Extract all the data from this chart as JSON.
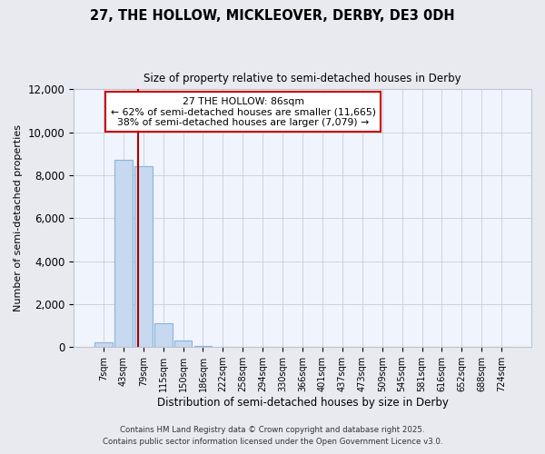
{
  "title": "27, THE HOLLOW, MICKLEOVER, DERBY, DE3 0DH",
  "subtitle": "Size of property relative to semi-detached houses in Derby",
  "xlabel": "Distribution of semi-detached houses by size in Derby",
  "ylabel": "Number of semi-detached properties",
  "bar_labels": [
    "7sqm",
    "43sqm",
    "79sqm",
    "115sqm",
    "150sqm",
    "186sqm",
    "222sqm",
    "258sqm",
    "294sqm",
    "330sqm",
    "366sqm",
    "401sqm",
    "437sqm",
    "473sqm",
    "509sqm",
    "545sqm",
    "581sqm",
    "616sqm",
    "652sqm",
    "688sqm",
    "724sqm"
  ],
  "bar_values": [
    200,
    8700,
    8400,
    1100,
    320,
    50,
    10,
    0,
    0,
    0,
    0,
    0,
    0,
    0,
    0,
    0,
    0,
    0,
    0,
    0,
    0
  ],
  "bar_color": "#c6d9f0",
  "bar_edge_color": "#8ab4d8",
  "vline_color": "#aa0000",
  "annotation_title": "27 THE HOLLOW: 86sqm",
  "annotation_line1": "← 62% of semi-detached houses are smaller (11,665)",
  "annotation_line2": "38% of semi-detached houses are larger (7,079) →",
  "annotation_box_facecolor": "#ffffff",
  "annotation_box_edgecolor": "#cc0000",
  "ylim": [
    0,
    12000
  ],
  "yticks": [
    0,
    2000,
    4000,
    6000,
    8000,
    10000,
    12000
  ],
  "footer1": "Contains HM Land Registry data © Crown copyright and database right 2025.",
  "footer2": "Contains public sector information licensed under the Open Government Licence v3.0.",
  "bg_color": "#e8eaf0",
  "plot_bg_color": "#f0f4fc"
}
